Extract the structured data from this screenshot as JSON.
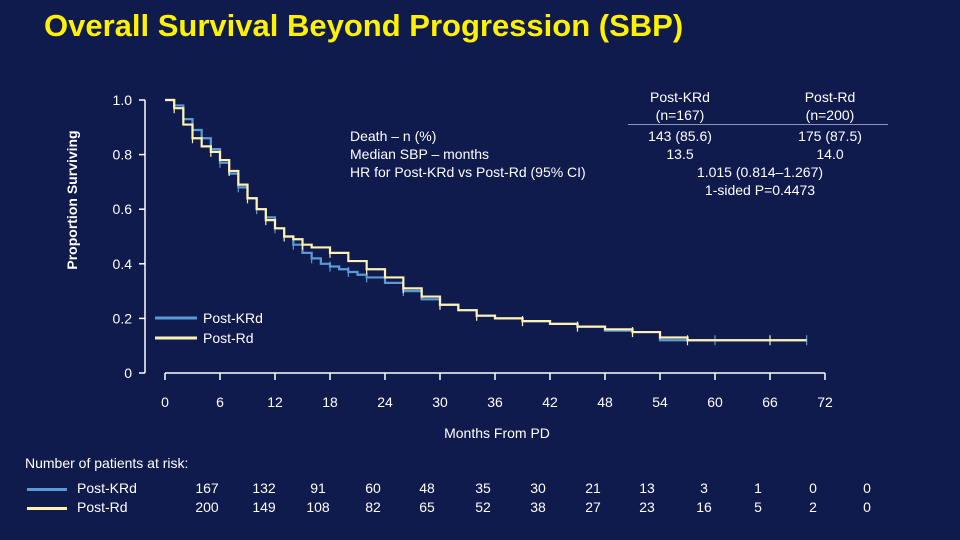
{
  "title": "Overall Survival Beyond Progression (SBP)",
  "colors": {
    "background": "#0f1a4d",
    "title": "#fff200",
    "post_krd": "#5b9bd5",
    "post_rd": "#fff2b0",
    "axis": "#ffffff"
  },
  "header": {
    "post_krd_name": "Post-KRd",
    "post_krd_n": "(n=167)",
    "post_rd_name": "Post-Rd",
    "post_rd_n": "(n=200)"
  },
  "stats": {
    "death_label": "Death – n (%)",
    "median_label": "Median SBP – months",
    "hr_label": "HR for Post-KRd vs Post-Rd (95% CI)",
    "death_krd": "143 (85.6)",
    "death_rd": "175 (87.5)",
    "median_krd": "13.5",
    "median_rd": "14.0",
    "hr_value": "1.015 (0.814–1.267)",
    "p_value": "1-sided P=0.4473"
  },
  "chart_data": {
    "type": "line",
    "title": "Overall Survival Beyond Progression (SBP)",
    "xlabel": "Months From PD",
    "ylabel": "Proportion Surviving",
    "xlim": [
      0,
      72
    ],
    "ylim": [
      0,
      1.0
    ],
    "x_ticks": [
      0,
      6,
      12,
      18,
      24,
      30,
      36,
      42,
      48,
      54,
      60,
      66,
      72
    ],
    "y_ticks": [
      0,
      0.2,
      0.4,
      0.6,
      0.8,
      1.0
    ],
    "y_tick_labels": [
      "0",
      "0.2",
      "0.4",
      "0.6",
      "0.8",
      "1.0"
    ],
    "legend": [
      "Post-KRd",
      "Post-Rd"
    ],
    "legend_position": "bottom-left",
    "series": [
      {
        "name": "Post-KRd",
        "color": "#5b9bd5",
        "points": [
          [
            0,
            1.0
          ],
          [
            1,
            0.98
          ],
          [
            2,
            0.93
          ],
          [
            3,
            0.89
          ],
          [
            4,
            0.86
          ],
          [
            5,
            0.82
          ],
          [
            6,
            0.77
          ],
          [
            7,
            0.73
          ],
          [
            8,
            0.68
          ],
          [
            9,
            0.64
          ],
          [
            10,
            0.6
          ],
          [
            11,
            0.57
          ],
          [
            12,
            0.53
          ],
          [
            13,
            0.5
          ],
          [
            14,
            0.47
          ],
          [
            15,
            0.44
          ],
          [
            16,
            0.42
          ],
          [
            17,
            0.4
          ],
          [
            18,
            0.39
          ],
          [
            19,
            0.38
          ],
          [
            20,
            0.37
          ],
          [
            21,
            0.36
          ],
          [
            22,
            0.35
          ],
          [
            24,
            0.33
          ],
          [
            26,
            0.3
          ],
          [
            28,
            0.27
          ],
          [
            30,
            0.25
          ],
          [
            32,
            0.23
          ],
          [
            34,
            0.21
          ],
          [
            36,
            0.2
          ],
          [
            39,
            0.19
          ],
          [
            42,
            0.18
          ],
          [
            45,
            0.17
          ],
          [
            48,
            0.155
          ],
          [
            51,
            0.15
          ],
          [
            54,
            0.12
          ],
          [
            60,
            0.12
          ],
          [
            66,
            0.12
          ],
          [
            70,
            0.12
          ]
        ]
      },
      {
        "name": "Post-Rd",
        "color": "#fff2b0",
        "points": [
          [
            0,
            1.0
          ],
          [
            1,
            0.97
          ],
          [
            2,
            0.91
          ],
          [
            3,
            0.86
          ],
          [
            4,
            0.83
          ],
          [
            5,
            0.81
          ],
          [
            6,
            0.78
          ],
          [
            7,
            0.74
          ],
          [
            8,
            0.69
          ],
          [
            9,
            0.64
          ],
          [
            10,
            0.6
          ],
          [
            11,
            0.56
          ],
          [
            12,
            0.53
          ],
          [
            13,
            0.5
          ],
          [
            14,
            0.49
          ],
          [
            15,
            0.47
          ],
          [
            16,
            0.46
          ],
          [
            18,
            0.44
          ],
          [
            20,
            0.41
          ],
          [
            22,
            0.38
          ],
          [
            24,
            0.35
          ],
          [
            26,
            0.31
          ],
          [
            28,
            0.28
          ],
          [
            30,
            0.25
          ],
          [
            32,
            0.23
          ],
          [
            34,
            0.21
          ],
          [
            36,
            0.2
          ],
          [
            39,
            0.19
          ],
          [
            42,
            0.18
          ],
          [
            45,
            0.17
          ],
          [
            48,
            0.16
          ],
          [
            51,
            0.15
          ],
          [
            54,
            0.13
          ],
          [
            57,
            0.12
          ],
          [
            60,
            0.12
          ],
          [
            66,
            0.12
          ],
          [
            70,
            0.12
          ]
        ]
      }
    ]
  },
  "risk_table": {
    "title": "Number of patients at risk:",
    "rows": [
      {
        "name": "Post-KRd",
        "color": "#5b9bd5",
        "values": [
          "167",
          "132",
          "91",
          "60",
          "48",
          "35",
          "30",
          "21",
          "13",
          "3",
          "1",
          "0",
          "0"
        ]
      },
      {
        "name": "Post-Rd",
        "color": "#fff2b0",
        "values": [
          "200",
          "149",
          "108",
          "82",
          "65",
          "52",
          "38",
          "27",
          "23",
          "16",
          "5",
          "2",
          "0"
        ]
      }
    ]
  }
}
